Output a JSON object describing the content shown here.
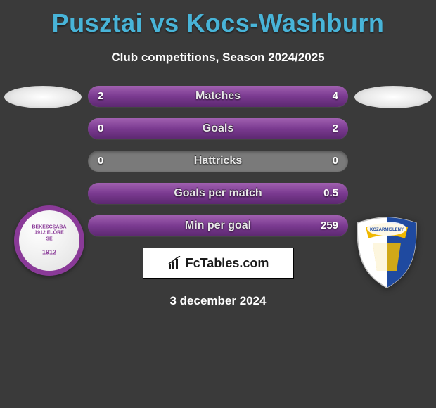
{
  "header": {
    "title": "Pusztai vs Kocs-Washburn",
    "subtitle": "Club competitions, Season 2024/2025"
  },
  "stats": {
    "rows": [
      {
        "label": "Matches",
        "left_val": "2",
        "right_val": "4",
        "left_pct": 33,
        "right_pct": 67
      },
      {
        "label": "Goals",
        "left_val": "0",
        "right_val": "2",
        "left_pct": 0,
        "right_pct": 100
      },
      {
        "label": "Hattricks",
        "left_val": "0",
        "right_val": "0",
        "left_pct": 0,
        "right_pct": 0
      },
      {
        "label": "Goals per match",
        "left_val": "",
        "right_val": "0.5",
        "left_pct": 0,
        "right_pct": 100
      },
      {
        "label": "Min per goal",
        "left_val": "",
        "right_val": "259",
        "left_pct": 0,
        "right_pct": 100
      }
    ],
    "bar_bg": "#7a7a7a",
    "fill_gradient_top": "#a060b0",
    "fill_gradient_mid": "#7a3a90",
    "fill_gradient_bot": "#5c2870",
    "label_color": "#e8e8e8",
    "value_color": "#ffffff"
  },
  "branding": {
    "site": "FcTables.com",
    "icon": "bar-chart-icon"
  },
  "date": "3 december 2024",
  "crests": {
    "left": {
      "ring_color": "#8a3a98",
      "text_top": "BÉKÉSCSABA",
      "text_mid": "1912 ELŐRE SE",
      "text_bot": "1912"
    },
    "right": {
      "primary": "#1f4aa0",
      "secondary": "#f0b800",
      "white": "#ffffff",
      "label": "KOZÁRMISLENY"
    }
  },
  "colors": {
    "title": "#48b4d8",
    "background": "#3a3a3a",
    "text": "#ffffff"
  }
}
